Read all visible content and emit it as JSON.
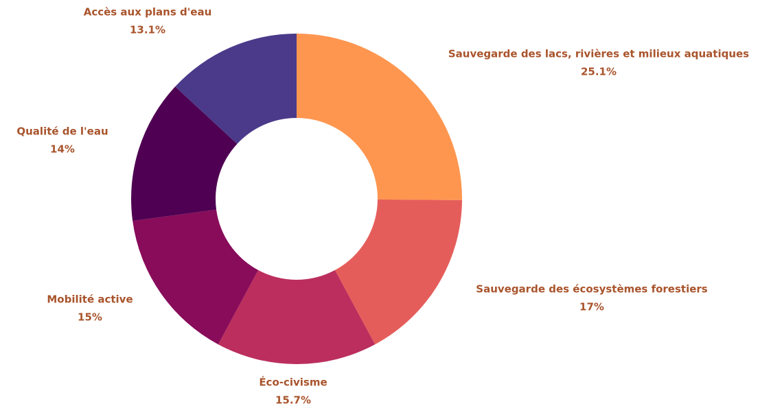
{
  "chart_data": {
    "type": "pie",
    "donut": true,
    "categories": [
      "Sauvegarde des lacs, rivières et milieux aquatiques",
      "Sauvegarde des écosystèmes forestiers",
      "Éco-civisme",
      "Mobilité active",
      "Qualité de l'eau",
      "Accès aux plans d'eau"
    ],
    "values": [
      25.1,
      17,
      15.7,
      15,
      14,
      13.1
    ],
    "value_labels": [
      "25.1%",
      "17%",
      "15.7%",
      "15%",
      "14%",
      "13.1%"
    ],
    "colors": [
      "#fe9650",
      "#e55d5a",
      "#bb2e5d",
      "#880c5a",
      "#4f0052",
      "#4b3a8a"
    ]
  }
}
